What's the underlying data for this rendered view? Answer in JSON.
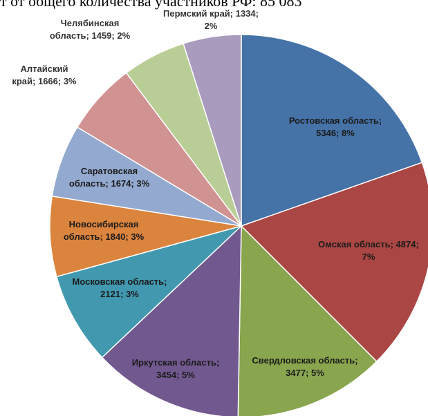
{
  "page": {
    "title": "т от общего количества участников РФ: 85 083"
  },
  "chart_data": {
    "type": "pie",
    "title": "",
    "legend": "none",
    "slices": [
      {
        "name": "Ростовская область",
        "value": 5346,
        "percent": "8%",
        "label_lines": [
          "Ростовская область;",
          "5346; 8%"
        ],
        "color": "#4572A7"
      },
      {
        "name": "Омская область",
        "value": 4874,
        "percent": "7%",
        "label_lines": [
          "Омская область; 4874;",
          "7%"
        ],
        "color": "#AA4643"
      },
      {
        "name": "Свердловская область",
        "value": 3477,
        "percent": "5%",
        "label_lines": [
          "Свердловская область;",
          "3477; 5%"
        ],
        "color": "#89A54E"
      },
      {
        "name": "Иркутская область",
        "value": 3454,
        "percent": "5%",
        "label_lines": [
          "Иркутская область;",
          "3454; 5%"
        ],
        "color": "#71588F"
      },
      {
        "name": "Московская область",
        "value": 2121,
        "percent": "3%",
        "label_lines": [
          "Московская область;",
          "2121; 3%"
        ],
        "color": "#4198AF"
      },
      {
        "name": "Новосибирская область",
        "value": 1840,
        "percent": "3%",
        "label_lines": [
          "Новосибирская",
          "область; 1840; 3%"
        ],
        "color": "#DB843D"
      },
      {
        "name": "Саратовская область",
        "value": 1674,
        "percent": "3%",
        "label_lines": [
          "Саратовская",
          "область; 1674; 3%"
        ],
        "color": "#93A9CF"
      },
      {
        "name": "Алтайский край",
        "value": 1666,
        "percent": "3%",
        "label_lines": [
          "Алтайский",
          "край; 1666; 3%"
        ],
        "color": "#D19392"
      },
      {
        "name": "Челябинская область",
        "value": 1459,
        "percent": "2%",
        "label_lines": [
          "Челябинская",
          "область; 1459; 2%"
        ],
        "color": "#B9CD96"
      },
      {
        "name": "Пермский край",
        "value": 1334,
        "percent": "2%",
        "label_lines": [
          "Пермский край; 1334;",
          "2%"
        ],
        "color": "#A99BBD"
      }
    ]
  }
}
